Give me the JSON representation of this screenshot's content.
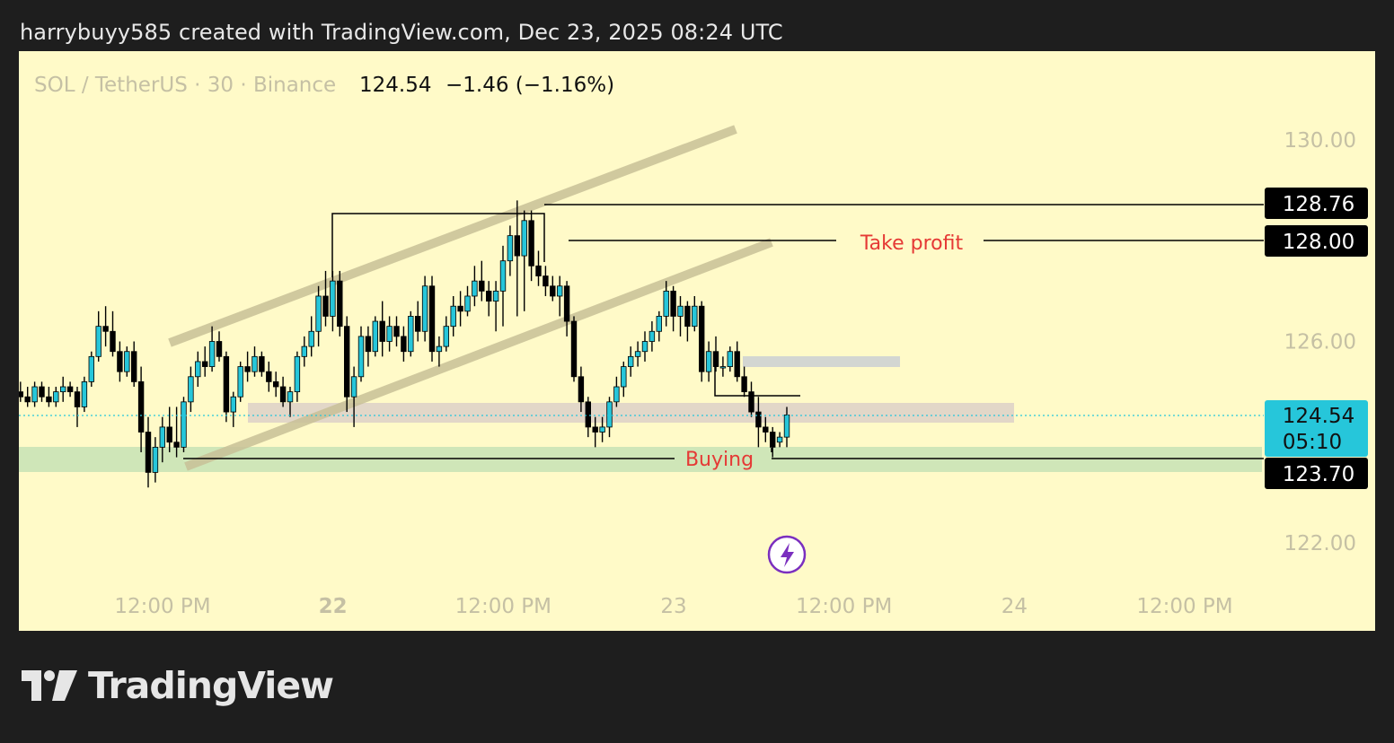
{
  "header": {
    "credit": "harrybuyy585 created with TradingView.com, Dec 23, 2025 08:24 UTC"
  },
  "symbol_bar": {
    "symbol": "SOL / TetherUS · 30 · Binance",
    "price": "124.54",
    "change": "−1.46 (−1.16%)"
  },
  "annotations": {
    "take_profit": "Take profit",
    "buying": "Buying"
  },
  "price_tags": {
    "high": "128.76",
    "take_profit": "128.00",
    "last": "124.54",
    "countdown": "05:10",
    "entry": "123.70"
  },
  "brand": {
    "name": "TradingView"
  },
  "colors": {
    "background": "#fffac8",
    "up_candle": "#26c6da",
    "down_candle": "#000000",
    "channel": "#c8c096",
    "label_red": "#e53935",
    "last_price": "#26c6da",
    "support_zone": "#cfe6b8",
    "resistance_zone": "#ddd0c8"
  },
  "chart_data": {
    "type": "candlestick",
    "title": "SOL / TetherUS · 30 · Binance",
    "y_ticks": [
      "130.00",
      "126.00",
      "122.00"
    ],
    "ylim": [
      120.2,
      131.6
    ],
    "x_ticks": [
      "12:00 PM",
      "22",
      "12:00 PM",
      "23",
      "12:00 PM",
      "24",
      "12:00 PM"
    ],
    "x_tick_hours": [
      12,
      24,
      36,
      48,
      60,
      72,
      84
    ],
    "x_range_hours": [
      2.5,
      91
    ],
    "current_price": 124.54,
    "levels": {
      "high": 128.76,
      "take_profit": 128.0,
      "entry": 123.7
    },
    "candles": [
      [
        124.8,
        124.9,
        124.6,
        124.6
      ],
      [
        124.6,
        125.2,
        124.5,
        125.1
      ],
      [
        125.0,
        125.1,
        124.7,
        124.8
      ],
      [
        124.8,
        125.1,
        124.7,
        125.0
      ],
      [
        125.0,
        125.2,
        124.8,
        124.9
      ],
      [
        124.9,
        125.1,
        124.7,
        124.8
      ],
      [
        124.8,
        125.2,
        124.7,
        125.1
      ],
      [
        125.1,
        125.2,
        124.8,
        124.9
      ],
      [
        124.9,
        125.1,
        124.7,
        124.8
      ],
      [
        124.8,
        125.1,
        124.7,
        125.0
      ],
      [
        125.0,
        125.3,
        124.8,
        125.1
      ],
      [
        125.1,
        125.2,
        124.9,
        125.0
      ],
      [
        125.0,
        125.1,
        124.3,
        124.7
      ],
      [
        124.7,
        125.3,
        124.6,
        125.2
      ],
      [
        125.2,
        125.8,
        125.1,
        125.7
      ],
      [
        125.7,
        126.6,
        125.6,
        126.3
      ],
      [
        126.3,
        126.7,
        125.9,
        126.2
      ],
      [
        126.2,
        126.6,
        125.7,
        125.8
      ],
      [
        125.8,
        126.0,
        125.2,
        125.4
      ],
      [
        125.4,
        125.9,
        125.3,
        125.8
      ],
      [
        125.8,
        126.0,
        125.1,
        125.2
      ],
      [
        125.2,
        125.5,
        123.8,
        124.2
      ],
      [
        124.2,
        124.5,
        123.1,
        123.4
      ],
      [
        123.4,
        124.1,
        123.2,
        123.9
      ],
      [
        123.9,
        124.5,
        123.6,
        124.3
      ],
      [
        124.3,
        124.7,
        123.8,
        124.0
      ],
      [
        124.0,
        124.7,
        123.7,
        123.9
      ],
      [
        123.9,
        124.9,
        123.8,
        124.8
      ],
      [
        124.8,
        125.5,
        124.6,
        125.3
      ],
      [
        125.3,
        125.8,
        125.1,
        125.6
      ],
      [
        125.6,
        125.9,
        125.3,
        125.5
      ],
      [
        125.5,
        126.3,
        125.4,
        126.0
      ],
      [
        126.0,
        126.2,
        125.6,
        125.7
      ],
      [
        125.7,
        125.8,
        124.4,
        124.6
      ],
      [
        124.6,
        125.0,
        124.3,
        124.9
      ],
      [
        124.9,
        125.6,
        124.8,
        125.5
      ],
      [
        125.5,
        125.8,
        125.2,
        125.4
      ],
      [
        125.4,
        125.9,
        125.3,
        125.7
      ],
      [
        125.7,
        125.8,
        125.3,
        125.4
      ],
      [
        125.4,
        125.6,
        125.0,
        125.2
      ],
      [
        125.2,
        125.4,
        124.9,
        125.1
      ],
      [
        125.1,
        125.3,
        124.7,
        124.8
      ],
      [
        124.8,
        125.1,
        124.5,
        125.0
      ],
      [
        125.0,
        125.8,
        124.8,
        125.7
      ],
      [
        125.7,
        126.1,
        125.5,
        125.9
      ],
      [
        125.9,
        126.5,
        125.7,
        126.2
      ],
      [
        126.2,
        127.1,
        125.9,
        126.9
      ],
      [
        126.9,
        127.4,
        126.3,
        126.5
      ],
      [
        126.5,
        127.4,
        126.2,
        127.2
      ],
      [
        127.2,
        127.4,
        126.1,
        126.3
      ],
      [
        126.3,
        126.5,
        124.6,
        124.9
      ],
      [
        124.9,
        125.5,
        124.3,
        125.3
      ],
      [
        125.3,
        126.3,
        125.2,
        126.1
      ],
      [
        126.1,
        126.3,
        125.5,
        125.8
      ],
      [
        125.8,
        126.5,
        125.7,
        126.4
      ],
      [
        126.4,
        126.8,
        125.7,
        126.0
      ],
      [
        126.0,
        126.5,
        125.8,
        126.3
      ],
      [
        126.3,
        126.5,
        125.9,
        126.1
      ],
      [
        126.1,
        126.3,
        125.6,
        125.8
      ],
      [
        125.8,
        126.6,
        125.7,
        126.5
      ],
      [
        126.5,
        126.8,
        126.0,
        126.2
      ],
      [
        126.2,
        127.3,
        126.0,
        127.1
      ],
      [
        127.1,
        127.3,
        125.6,
        125.8
      ],
      [
        125.8,
        126.1,
        125.5,
        125.9
      ],
      [
        125.9,
        126.5,
        125.8,
        126.3
      ],
      [
        126.3,
        126.9,
        126.1,
        126.7
      ],
      [
        126.7,
        127.0,
        126.3,
        126.6
      ],
      [
        126.6,
        127.1,
        126.5,
        126.9
      ],
      [
        126.9,
        127.5,
        126.7,
        127.2
      ],
      [
        127.2,
        127.6,
        126.8,
        127.0
      ],
      [
        127.0,
        127.2,
        126.5,
        126.8
      ],
      [
        126.8,
        127.2,
        126.2,
        127.0
      ],
      [
        127.0,
        127.9,
        126.3,
        127.6
      ],
      [
        127.6,
        128.3,
        127.3,
        128.1
      ],
      [
        128.1,
        128.8,
        126.5,
        127.7
      ],
      [
        127.7,
        128.6,
        126.6,
        128.4
      ],
      [
        128.4,
        128.6,
        127.2,
        127.5
      ],
      [
        127.5,
        127.8,
        127.1,
        127.3
      ],
      [
        127.3,
        127.5,
        126.9,
        127.1
      ],
      [
        127.1,
        127.3,
        126.8,
        126.9
      ],
      [
        126.9,
        127.3,
        126.5,
        127.1
      ],
      [
        127.1,
        127.2,
        126.1,
        126.4
      ],
      [
        126.4,
        126.5,
        125.2,
        125.3
      ],
      [
        125.3,
        125.5,
        124.6,
        124.8
      ],
      [
        124.8,
        124.9,
        124.1,
        124.3
      ],
      [
        124.3,
        124.5,
        123.9,
        124.2
      ],
      [
        124.2,
        124.5,
        124.0,
        124.3
      ],
      [
        124.3,
        124.9,
        124.1,
        124.8
      ],
      [
        124.8,
        125.3,
        124.7,
        125.1
      ],
      [
        125.1,
        125.6,
        124.9,
        125.5
      ],
      [
        125.5,
        125.9,
        125.3,
        125.7
      ],
      [
        125.7,
        126.0,
        125.5,
        125.8
      ],
      [
        125.8,
        126.2,
        125.6,
        126.0
      ],
      [
        126.0,
        126.4,
        125.8,
        126.2
      ],
      [
        126.2,
        126.6,
        126.0,
        126.5
      ],
      [
        126.5,
        127.2,
        126.3,
        127.0
      ],
      [
        127.0,
        127.1,
        126.2,
        126.5
      ],
      [
        126.5,
        126.9,
        126.1,
        126.7
      ],
      [
        126.7,
        126.8,
        126.0,
        126.3
      ],
      [
        126.3,
        126.9,
        126.2,
        126.7
      ],
      [
        126.7,
        126.8,
        125.2,
        125.4
      ],
      [
        125.4,
        126.0,
        125.2,
        125.8
      ],
      [
        125.8,
        126.1,
        125.4,
        125.5
      ],
      [
        125.5,
        125.7,
        125.3,
        125.5
      ],
      [
        125.5,
        125.9,
        125.4,
        125.8
      ],
      [
        125.8,
        126.0,
        125.2,
        125.3
      ],
      [
        125.3,
        125.5,
        124.9,
        125.0
      ],
      [
        125.0,
        125.2,
        124.5,
        124.6
      ],
      [
        124.6,
        124.9,
        123.9,
        124.3
      ],
      [
        124.3,
        124.5,
        124.0,
        124.2
      ],
      [
        124.2,
        124.3,
        123.7,
        123.9
      ],
      [
        124.0,
        124.2,
        123.9,
        124.1
      ],
      [
        124.1,
        124.7,
        123.9,
        124.54
      ]
    ]
  }
}
